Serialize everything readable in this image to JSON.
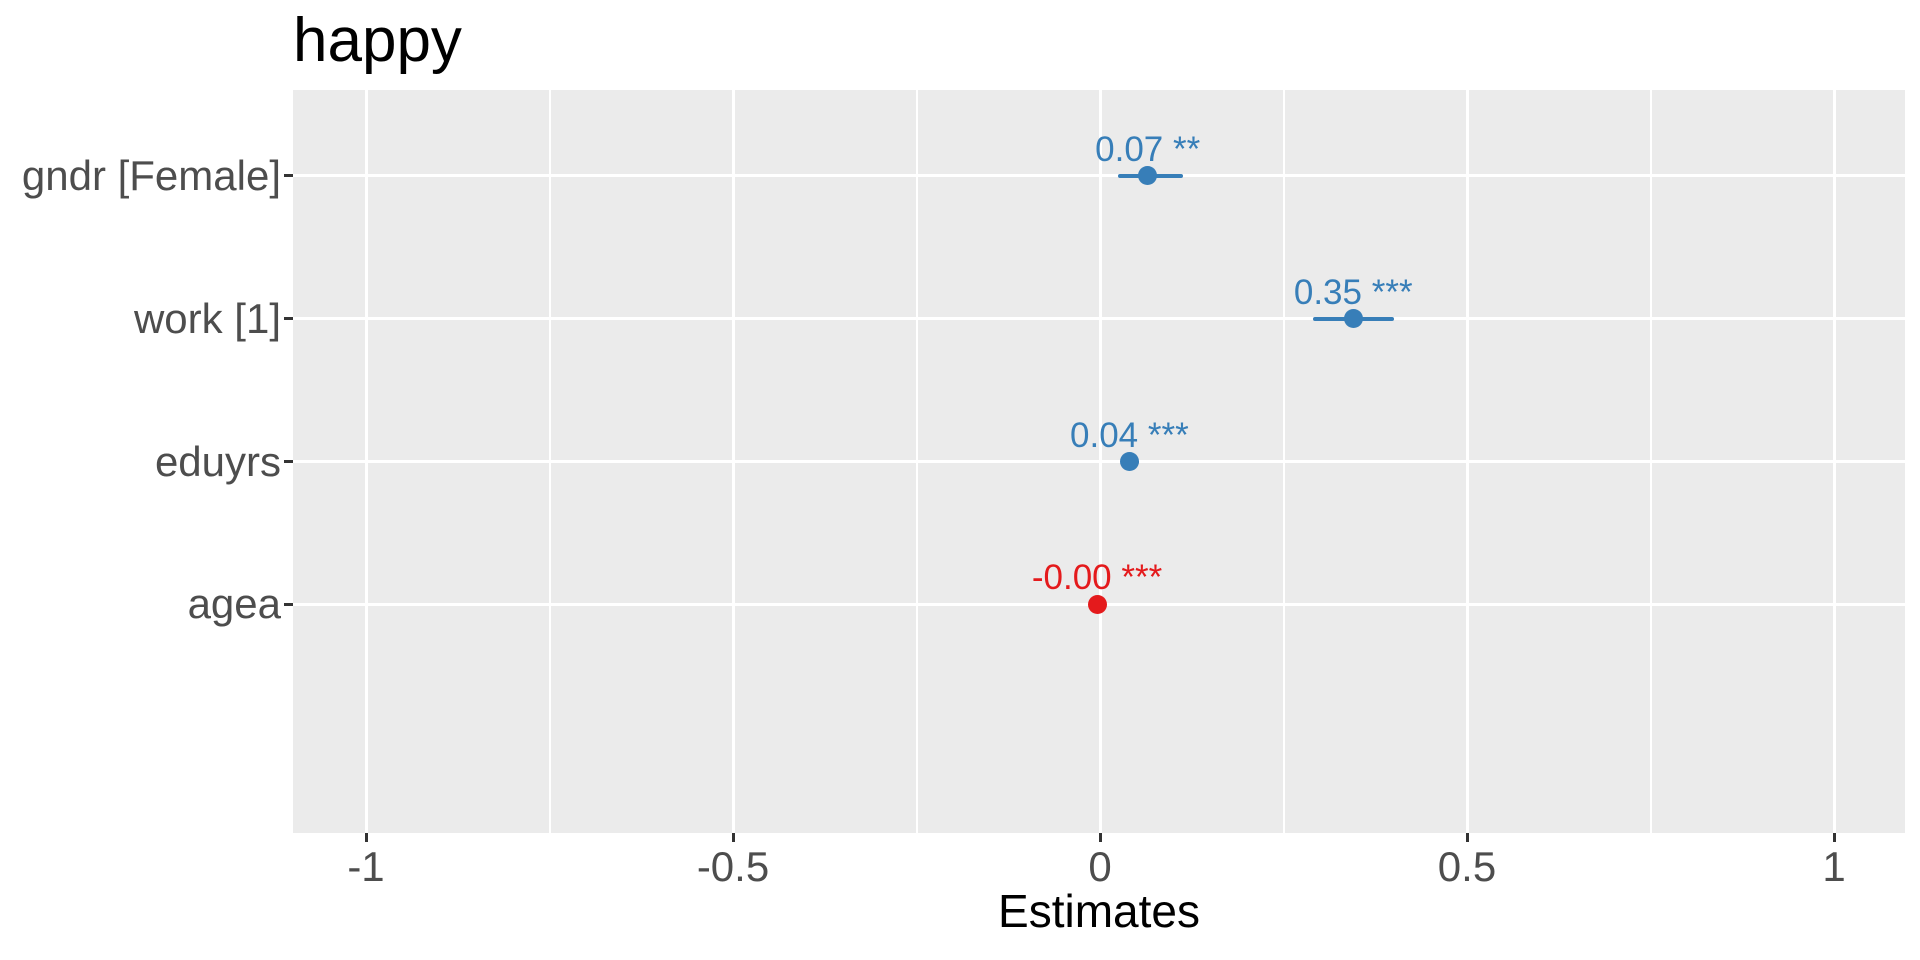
{
  "chart_data": {
    "type": "scatter",
    "variant": "coefficient-forest-plot",
    "title": "happy",
    "xlabel": "Estimates",
    "ylabel": "",
    "categories": [
      "gndr [Female]",
      "work [1]",
      "eduyrs",
      "agea"
    ],
    "points": [
      {
        "term": "gndr [Female]",
        "estimate": 0.065,
        "ci_low": 0.025,
        "ci_high": 0.113,
        "value_label": "0.07 **",
        "significance": "**",
        "color": "#377EB8"
      },
      {
        "term": "work [1]",
        "estimate": 0.345,
        "ci_low": 0.29,
        "ci_high": 0.4,
        "value_label": "0.35 ***",
        "significance": "***",
        "color": "#377EB8"
      },
      {
        "term": "eduyrs",
        "estimate": 0.04,
        "ci_low": 0.031,
        "ci_high": 0.053,
        "value_label": "0.04 ***",
        "significance": "***",
        "color": "#377EB8"
      },
      {
        "term": "agea",
        "estimate": -0.004,
        "ci_low": -0.007,
        "ci_high": -0.001,
        "value_label": "-0.00 ***",
        "significance": "***",
        "color": "#E41A1C"
      }
    ],
    "x_ticks": [
      -1,
      -0.5,
      0,
      0.5,
      1
    ],
    "x_tick_labels": [
      "-1",
      "-0.5",
      "0",
      "0.5",
      "1"
    ],
    "xlim": [
      -1.1,
      1.1
    ],
    "grid": {
      "major": true,
      "minor": true,
      "color": "#FFFFFF"
    },
    "legend_position": "none",
    "colors": {
      "positive": "#377EB8",
      "negative": "#E41A1C",
      "panel_background": "#EBEBEB",
      "gridline": "#FFFFFF",
      "tick_text": "#4D4D4D",
      "title_text": "#000000",
      "tick_mark": "#333333"
    }
  }
}
